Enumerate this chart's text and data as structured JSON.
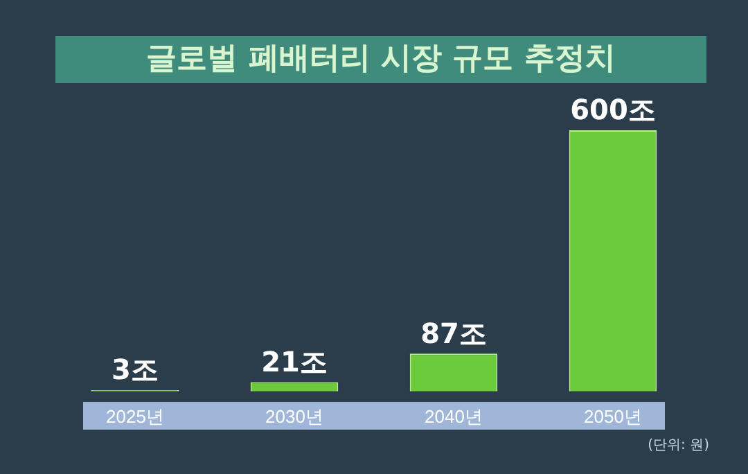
{
  "chart_data": {
    "type": "bar",
    "title": "글로벌 폐배터리 시장 규모 추정치",
    "categories": [
      "2025년",
      "2030년",
      "2040년",
      "2050년"
    ],
    "values": [
      3,
      21,
      87,
      600
    ],
    "value_labels": [
      "3조",
      "21조",
      "87조",
      "600조"
    ],
    "color": "#6ccb3a",
    "tick_labels": "x",
    "grid": false,
    "legend": false,
    "annotations": [
      "(단위: 원)"
    ]
  }
}
